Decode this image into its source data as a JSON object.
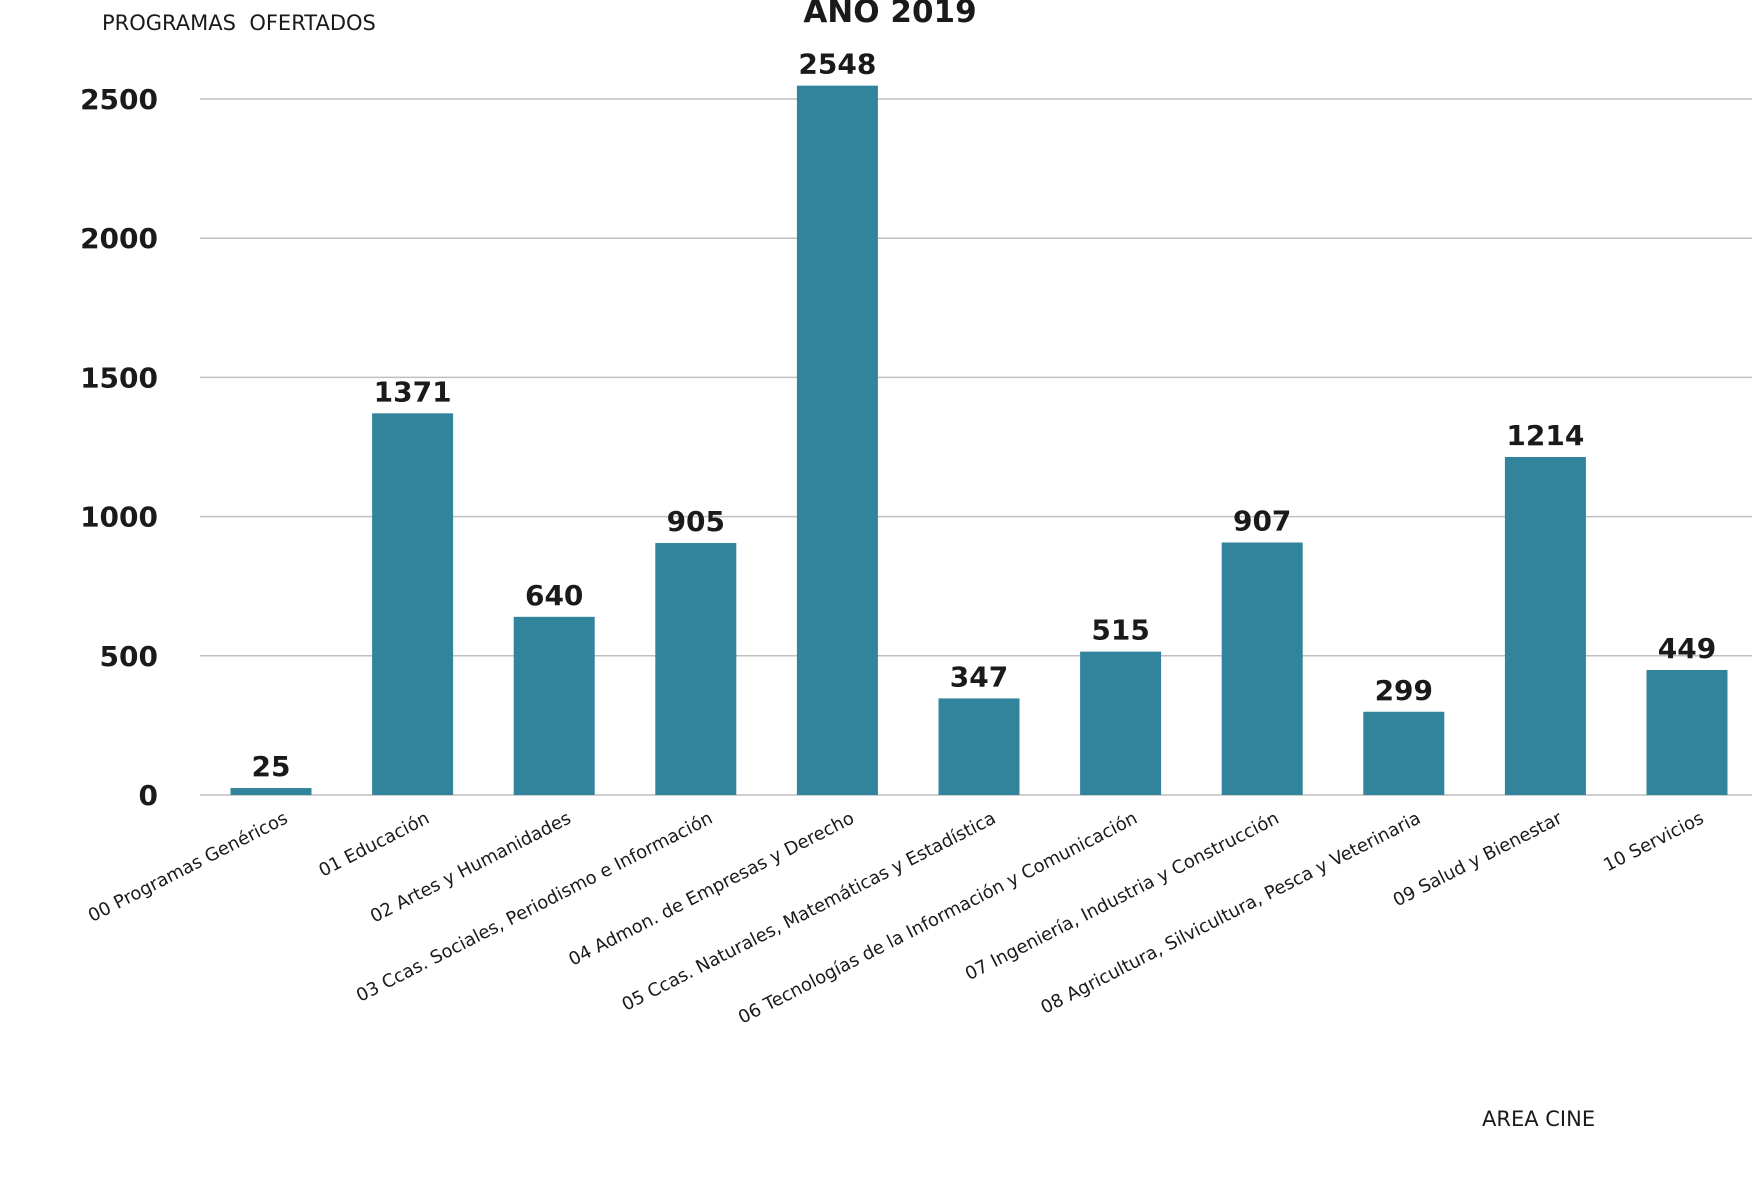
{
  "chart_data": {
    "type": "bar",
    "title": "AÑO 2019",
    "ylabel": "PROGRAMAS  OFERTADOS",
    "xlabel": "AREA CINE",
    "ylim": [
      0,
      2500
    ],
    "yticks": [
      "0",
      "500",
      "1000",
      "1500",
      "2000",
      "2500"
    ],
    "grid": true,
    "categories": [
      "00 Programas Genéricos",
      "01 Educación",
      "02 Artes y Humanidades",
      "03 Ccas. Sociales, Periodismo e Información",
      "04 Admon. de Empresas y Derecho",
      "05 Ccas. Naturales, Matemáticas y Estadística",
      "06 Tecnologías de la Información y Comunicación",
      "07 Ingeniería, Industria y Construcción",
      "08 Agricultura, Silvicultura, Pesca y Veterinaria",
      "09 Salud y Bienestar",
      "10 Servicios"
    ],
    "values": [
      25,
      1371,
      640,
      905,
      2548,
      347,
      515,
      907,
      299,
      1214,
      449
    ],
    "data_labels": [
      "25",
      "1371",
      "640",
      "905",
      "2548",
      "347",
      "515",
      "907",
      "299",
      "1214",
      "449"
    ],
    "colors": {
      "bar": "#31849b",
      "grid": "#bfbfbf",
      "text": "#1a1a1a"
    }
  }
}
